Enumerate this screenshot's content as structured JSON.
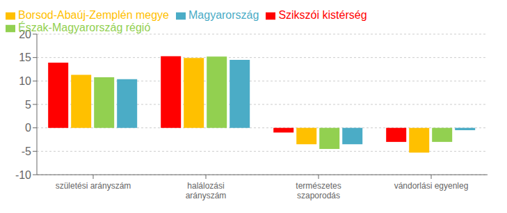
{
  "chart_data": {
    "type": "bar",
    "categories": [
      "születési arányszám",
      "halálozási\narányszám",
      "természetes\nszaporodás",
      "vándorlási egyenleg"
    ],
    "series": [
      {
        "name": "Szikszói kistérség",
        "color": "#FF0000",
        "values": [
          13.9,
          15.3,
          -1.0,
          -3.0
        ]
      },
      {
        "name": "Borsod-Abaúj-Zemplén megye",
        "color": "#FFC000",
        "values": [
          11.3,
          14.9,
          -3.5,
          -5.3
        ]
      },
      {
        "name": "Észak-Magyarország régió",
        "color": "#92D050",
        "values": [
          10.8,
          15.2,
          -4.5,
          -3.0
        ]
      },
      {
        "name": "Magyarország",
        "color": "#4BACC6",
        "values": [
          10.4,
          14.5,
          -3.5,
          -0.5
        ]
      }
    ],
    "ylim": [
      -10,
      20
    ],
    "yticks": [
      -10,
      -5,
      0,
      5,
      10,
      15,
      20
    ],
    "grid": true,
    "legend": "upper left"
  }
}
